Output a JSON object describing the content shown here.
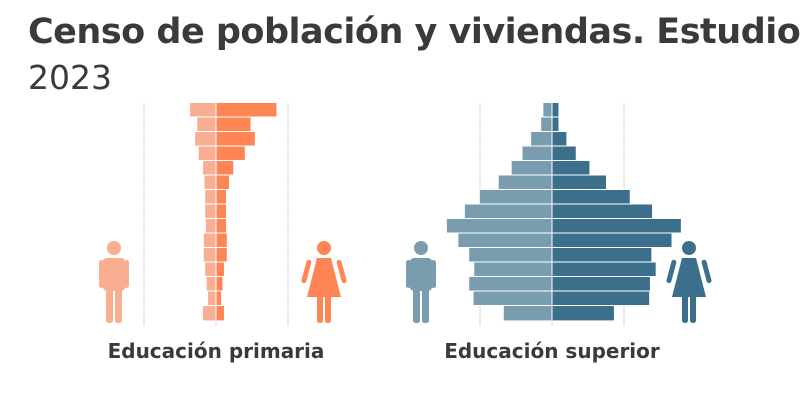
{
  "header": {
    "title": "Censo de población y viviendas. Estudios",
    "subtitle": "2023"
  },
  "colors": {
    "primaria_men": "#f9ad91",
    "primaria_women": "#ff8555",
    "superior_men": "#7a9caf",
    "superior_women": "#3b6f8c",
    "gridline": "#d7d7d7",
    "separator": "#ffffff"
  },
  "chart_data": [
    {
      "type": "bar",
      "subtype": "population-pyramid",
      "title": "Educación primaria",
      "axis_max": 100,
      "grid": true,
      "legend": "icons beside the pyramid",
      "series": [
        {
          "name": "",
          "icon": "man-icon",
          "side": "left",
          "values": [
            36,
            26,
            29,
            24,
            18,
            16,
            15,
            15,
            14,
            17,
            17,
            15,
            13,
            11,
            18
          ]
        },
        {
          "name": "",
          "icon": "woman-icon",
          "side": "right",
          "values": [
            84,
            48,
            54,
            40,
            24,
            18,
            14,
            14,
            14,
            15,
            15,
            11,
            9,
            7,
            11
          ]
        }
      ]
    },
    {
      "type": "bar",
      "subtype": "population-pyramid",
      "title": "Educación superior",
      "axis_max": 100,
      "grid": true,
      "legend": "icons beside the pyramid",
      "series": [
        {
          "name": "",
          "icon": "man-icon",
          "side": "left",
          "values": [
            12,
            15,
            29,
            41,
            56,
            74,
            100,
            121,
            146,
            130,
            115,
            108,
            115,
            109,
            67
          ]
        },
        {
          "name": "",
          "icon": "woman-icon",
          "side": "right",
          "values": [
            9,
            9,
            20,
            33,
            52,
            75,
            108,
            139,
            179,
            166,
            138,
            144,
            136,
            135,
            86
          ]
        }
      ]
    }
  ]
}
